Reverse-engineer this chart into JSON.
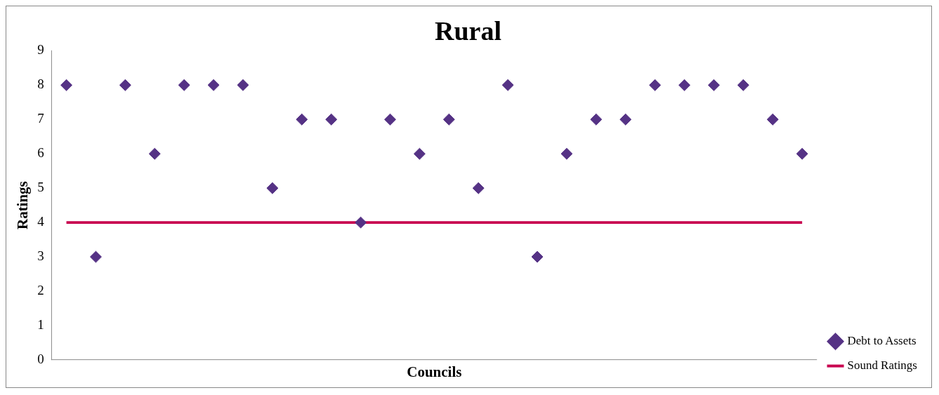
{
  "chart_data": {
    "type": "scatter",
    "title": "Rural",
    "xlabel": "Councils",
    "ylabel": "Ratings",
    "categories": [
      null,
      null,
      null,
      null,
      null,
      null,
      null,
      null,
      null,
      null,
      null,
      null,
      null,
      null,
      null,
      null,
      null,
      null,
      null,
      null,
      null,
      null,
      null,
      null,
      null,
      null
    ],
    "series": [
      {
        "name": "Debt to Assets",
        "marker": "diamond",
        "color": "#553285",
        "values": [
          8,
          3,
          8,
          6,
          8,
          8,
          8,
          5,
          7,
          7,
          4,
          7,
          6,
          7,
          5,
          8,
          3,
          6,
          7,
          7,
          8,
          8,
          8,
          8,
          7,
          6
        ]
      },
      {
        "name": "Sound Ratings",
        "type": "line",
        "marker": "none",
        "line_style": "solid",
        "color": "#c8004f",
        "values": [
          4,
          4,
          4,
          4,
          4,
          4,
          4,
          4,
          4,
          4,
          4,
          4,
          4,
          4,
          4,
          4,
          4,
          4,
          4,
          4,
          4,
          4,
          4,
          4,
          4,
          4
        ]
      }
    ],
    "ylim": [
      0,
      9
    ],
    "yticks": [
      0,
      1,
      2,
      3,
      4,
      5,
      6,
      7,
      8,
      9
    ],
    "grid": false,
    "legend": "bottom right"
  }
}
